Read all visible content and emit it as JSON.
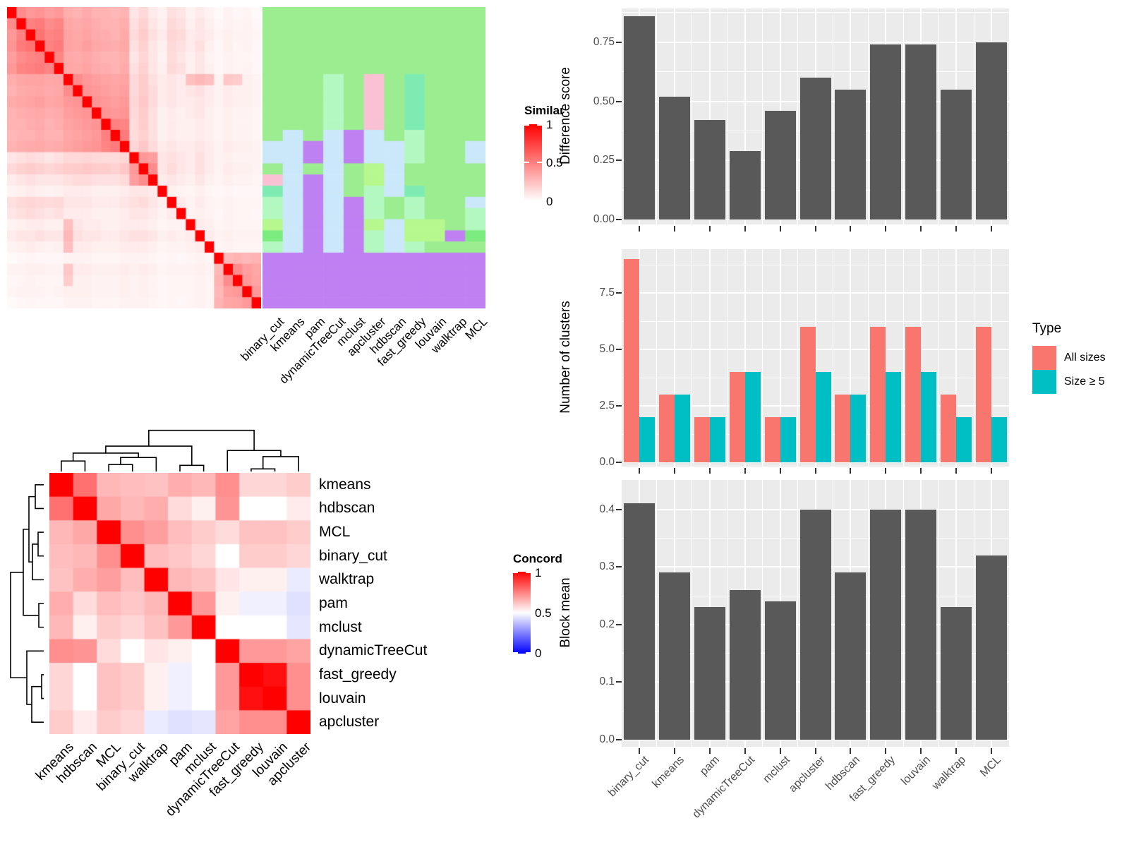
{
  "methods": [
    "binary_cut",
    "kmeans",
    "pam",
    "dynamicTreeCut",
    "mclust",
    "apcluster",
    "hdbscan",
    "fast_greedy",
    "louvain",
    "walktrap",
    "MCL"
  ],
  "legends": {
    "similarity": {
      "title": "Similarity",
      "ticks": [
        "1",
        "0.5",
        "0"
      ],
      "low_color": "#FFFFFF",
      "high_color": "#FF0000"
    },
    "concordance": {
      "title": "Concordance",
      "ticks": [
        "1",
        "0.5",
        "0"
      ],
      "low_color": "#0000FF",
      "mid_color": "#FFFFFF",
      "high_color": "#FF0000"
    },
    "type": {
      "title": "Type",
      "items": [
        {
          "label": "All sizes",
          "color": "#F8766D"
        },
        {
          "label": "Size ≥ 5",
          "color": "#00BFC4"
        }
      ]
    }
  },
  "colors": {
    "bar_grey": "#595959",
    "panel_bg": "#EBEBEB",
    "grid": "#FFFFFF",
    "axis_text": "#4D4D4D",
    "heat_high": "#FF0000"
  },
  "chart_data": [
    {
      "id": "similarity_matrix",
      "type": "heatmap",
      "n": 27,
      "colorscale": {
        "low": "#FFFFFF",
        "high": "#FF0000",
        "domain": [
          0,
          1
        ]
      },
      "values_upper_triangle": [
        [
          1,
          0.45,
          0.4,
          0.42,
          0.38,
          0.4,
          0.32,
          0.3,
          0.33,
          0.3,
          0.3,
          0.28,
          0.3,
          0.1,
          0.15,
          0.08,
          0.05,
          0.12,
          0.1,
          0.05,
          0.08,
          0.05,
          0.02,
          0.05,
          0.03,
          0.04,
          0.02
        ],
        [
          1,
          0.5,
          0.52,
          0.45,
          0.48,
          0.35,
          0.33,
          0.35,
          0.32,
          0.3,
          0.3,
          0.32,
          0.12,
          0.18,
          0.1,
          0.06,
          0.15,
          0.12,
          0.06,
          0.1,
          0.06,
          0.03,
          0.05,
          0.04,
          0.05,
          0.03
        ],
        [
          1,
          0.55,
          0.48,
          0.5,
          0.36,
          0.34,
          0.36,
          0.33,
          0.32,
          0.3,
          0.33,
          0.14,
          0.2,
          0.12,
          0.08,
          0.16,
          0.14,
          0.08,
          0.1,
          0.08,
          0.04,
          0.06,
          0.05,
          0.05,
          0.04
        ],
        [
          1,
          0.5,
          0.52,
          0.36,
          0.35,
          0.38,
          0.34,
          0.33,
          0.32,
          0.34,
          0.12,
          0.18,
          0.1,
          0.06,
          0.15,
          0.12,
          0.08,
          0.12,
          0.06,
          0.03,
          0.06,
          0.04,
          0.05,
          0.03
        ],
        [
          1,
          0.48,
          0.34,
          0.33,
          0.35,
          0.32,
          0.3,
          0.3,
          0.32,
          0.1,
          0.16,
          0.1,
          0.05,
          0.14,
          0.1,
          0.06,
          0.1,
          0.05,
          0.03,
          0.05,
          0.04,
          0.04,
          0.03
        ],
        [
          1,
          0.35,
          0.34,
          0.36,
          0.33,
          0.32,
          0.3,
          0.33,
          0.12,
          0.18,
          0.1,
          0.06,
          0.15,
          0.12,
          0.06,
          0.1,
          0.06,
          0.03,
          0.05,
          0.04,
          0.05,
          0.03
        ],
        [
          1,
          0.45,
          0.4,
          0.38,
          0.36,
          0.35,
          0.36,
          0.15,
          0.2,
          0.12,
          0.08,
          0.1,
          0.08,
          0.25,
          0.28,
          0.25,
          0.05,
          0.22,
          0.2,
          0.06,
          0.05
        ],
        [
          1,
          0.42,
          0.4,
          0.38,
          0.36,
          0.38,
          0.15,
          0.2,
          0.14,
          0.08,
          0.1,
          0.08,
          0.1,
          0.12,
          0.08,
          0.05,
          0.08,
          0.06,
          0.06,
          0.05
        ],
        [
          1,
          0.42,
          0.4,
          0.38,
          0.4,
          0.16,
          0.22,
          0.14,
          0.08,
          0.1,
          0.08,
          0.08,
          0.1,
          0.08,
          0.05,
          0.08,
          0.06,
          0.06,
          0.05
        ],
        [
          1,
          0.42,
          0.4,
          0.42,
          0.15,
          0.2,
          0.12,
          0.06,
          0.08,
          0.06,
          0.08,
          0.1,
          0.06,
          0.04,
          0.06,
          0.05,
          0.05,
          0.04
        ],
        [
          1,
          0.5,
          0.48,
          0.14,
          0.2,
          0.12,
          0.06,
          0.08,
          0.06,
          0.06,
          0.08,
          0.06,
          0.04,
          0.06,
          0.05,
          0.05,
          0.04
        ],
        [
          1,
          0.52,
          0.14,
          0.18,
          0.12,
          0.06,
          0.08,
          0.06,
          0.06,
          0.08,
          0.06,
          0.04,
          0.06,
          0.05,
          0.05,
          0.04
        ],
        [
          1,
          0.16,
          0.22,
          0.14,
          0.08,
          0.1,
          0.08,
          0.08,
          0.1,
          0.08,
          0.05,
          0.08,
          0.06,
          0.06,
          0.05
        ],
        [
          1,
          0.4,
          0.38,
          0.1,
          0.12,
          0.1,
          0.08,
          0.12,
          0.08,
          0.05,
          0.06,
          0.05,
          0.05,
          0.05
        ],
        [
          1,
          0.45,
          0.1,
          0.14,
          0.1,
          0.08,
          0.12,
          0.08,
          0.05,
          0.08,
          0.06,
          0.06,
          0.05
        ],
        [
          1,
          0.08,
          0.1,
          0.08,
          0.06,
          0.1,
          0.06,
          0.04,
          0.06,
          0.05,
          0.05,
          0.04
        ],
        [
          1,
          0.06,
          0.05,
          0.04,
          0.06,
          0.04,
          0.03,
          0.04,
          0.03,
          0.03,
          0.03
        ],
        [
          1,
          0.08,
          0.05,
          0.08,
          0.05,
          0.04,
          0.05,
          0.04,
          0.04,
          0.04
        ],
        [
          1,
          0.05,
          0.06,
          0.05,
          0.03,
          0.05,
          0.04,
          0.04,
          0.03
        ],
        [
          1,
          0.08,
          0.06,
          0.04,
          0.05,
          0.04,
          0.04,
          0.04
        ],
        [
          1,
          0.08,
          0.05,
          0.06,
          0.05,
          0.05,
          0.05
        ],
        [
          1,
          0.04,
          0.05,
          0.04,
          0.04,
          0.04
        ],
        [
          1,
          0.28,
          0.3,
          0.28,
          0.3
        ],
        [
          1,
          0.45,
          0.38,
          0.35
        ],
        [
          1,
          0.4,
          0.36
        ],
        [
          1,
          0.4
        ],
        [
          1
        ]
      ]
    },
    {
      "id": "method_partitions",
      "type": "heatmap",
      "columns": [
        "binary_cut",
        "kmeans",
        "pam",
        "dynamicTreeCut",
        "mclust",
        "apcluster",
        "hdbscan",
        "fast_greedy",
        "louvain",
        "walktrap",
        "MCL"
      ],
      "palette": {
        "G": "#9CEC90",
        "M": "#B4F8C1",
        "T": "#7EECB2",
        "P": "#F9C1D3",
        "B": "#CBE8FB",
        "U": "#BF80F2",
        "Y": "#B6F88D",
        "D": "#7DEC80"
      },
      "rows": [
        "GGGGGGGGGGG",
        "GGGGGGGGGGG",
        "GGGGGGGGGGG",
        "GGGGGGGGGGG",
        "GGGGGGGGGGG",
        "GGGGGGGGGGG",
        "GGGMGPGTGGG",
        "GGGMGPGTGGG",
        "GGGMGPGTGGG",
        "GGGMGPGTGGG",
        "GGGMGPGTGGG",
        "GBGBUBGMGGG",
        "BBUBUBBMGGB",
        "BBUBUBBMGGB",
        "GBGBGYBGGGG",
        "PBUBGYBGGGG",
        "TBUBGMBTGGG",
        "MBUBUMGMGGB",
        "MBUBUMGMGGM",
        "YBUBUYBYYGM",
        "DBUBUMBYYUD",
        "MBUBUMBMGGG",
        "UUUUUUUUUUU",
        "UUUUUUUUUUU",
        "UUUUUUUUUUU",
        "UUUUUUUUUUU",
        "UUUUUUUUUUU"
      ]
    },
    {
      "id": "concordance_matrix",
      "type": "heatmap",
      "labels": [
        "kmeans",
        "hdbscan",
        "MCL",
        "binary_cut",
        "walktrap",
        "pam",
        "mclust",
        "dynamicTreeCut",
        "fast_greedy",
        "louvain",
        "apcluster"
      ],
      "colorscale": {
        "low": "#0000FF",
        "mid": "#FFFFFF",
        "high": "#FF0000",
        "domain": [
          0,
          0.5,
          1
        ]
      },
      "matrix": [
        [
          1.0,
          0.78,
          0.64,
          0.63,
          0.62,
          0.66,
          0.64,
          0.72,
          0.58,
          0.58,
          0.6
        ],
        [
          0.78,
          1.0,
          0.67,
          0.64,
          0.66,
          0.57,
          0.53,
          0.71,
          0.5,
          0.5,
          0.54
        ],
        [
          0.64,
          0.67,
          1.0,
          0.72,
          0.69,
          0.63,
          0.6,
          0.57,
          0.62,
          0.62,
          0.6
        ],
        [
          0.63,
          0.64,
          0.72,
          1.0,
          0.63,
          0.61,
          0.58,
          0.5,
          0.6,
          0.6,
          0.58
        ],
        [
          0.62,
          0.66,
          0.69,
          0.63,
          1.0,
          0.64,
          0.62,
          0.55,
          0.53,
          0.53,
          0.46
        ],
        [
          0.66,
          0.57,
          0.63,
          0.61,
          0.64,
          1.0,
          0.7,
          0.53,
          0.47,
          0.47,
          0.44
        ],
        [
          0.64,
          0.53,
          0.6,
          0.58,
          0.62,
          0.7,
          1.0,
          0.5,
          0.5,
          0.5,
          0.45
        ],
        [
          0.72,
          0.71,
          0.57,
          0.5,
          0.55,
          0.53,
          0.5,
          1.0,
          0.7,
          0.7,
          0.68
        ],
        [
          0.58,
          0.5,
          0.62,
          0.6,
          0.53,
          0.47,
          0.5,
          0.7,
          1.0,
          0.97,
          0.72
        ],
        [
          0.58,
          0.5,
          0.62,
          0.6,
          0.53,
          0.47,
          0.5,
          0.7,
          0.97,
          1.0,
          0.72
        ],
        [
          0.6,
          0.54,
          0.6,
          0.58,
          0.46,
          0.44,
          0.45,
          0.68,
          0.72,
          0.72,
          1.0
        ]
      ],
      "dendrogram_merges": [
        [
          "L8",
          "L9",
          0.06
        ],
        [
          "M0",
          "L10",
          0.34
        ],
        [
          "L7",
          "M1",
          0.48
        ],
        [
          "L2",
          "L3",
          0.16
        ],
        [
          "M3",
          "L4",
          0.32
        ],
        [
          "L0",
          "L1",
          0.24
        ],
        [
          "M5",
          "M4",
          0.42
        ],
        [
          "L5",
          "L6",
          0.14
        ],
        [
          "M6",
          "M7",
          0.58
        ],
        [
          "M8",
          "M2",
          0.94
        ]
      ]
    },
    {
      "id": "difference_score",
      "type": "bar",
      "categories": [
        "binary_cut",
        "kmeans",
        "pam",
        "dynamicTreeCut",
        "mclust",
        "apcluster",
        "hdbscan",
        "fast_greedy",
        "louvain",
        "walktrap",
        "MCL"
      ],
      "values": [
        0.86,
        0.52,
        0.42,
        0.29,
        0.46,
        0.6,
        0.55,
        0.74,
        0.74,
        0.55,
        0.75
      ],
      "ylabel": "Difference score",
      "yticks": {
        "values": [
          0,
          0.25,
          0.5,
          0.75
        ],
        "labels": [
          "0.00",
          "0.25",
          "0.50",
          "0.75"
        ],
        "minor": [
          0.125,
          0.375,
          0.625,
          0.875
        ]
      },
      "ylim": [
        0,
        0.89
      ],
      "bar_color": "#595959"
    },
    {
      "id": "n_clusters",
      "type": "grouped-bar",
      "categories": [
        "binary_cut",
        "kmeans",
        "pam",
        "dynamicTreeCut",
        "mclust",
        "apcluster",
        "hdbscan",
        "fast_greedy",
        "louvain",
        "walktrap",
        "MCL"
      ],
      "series": [
        {
          "name": "All sizes",
          "color": "#F8766D",
          "values": [
            9,
            3,
            2,
            4,
            2,
            6,
            3,
            6,
            6,
            3,
            6
          ]
        },
        {
          "name": "Size ≥ 5",
          "color": "#00BFC4",
          "values": [
            2,
            3,
            2,
            4,
            2,
            4,
            3,
            4,
            4,
            2,
            2
          ]
        }
      ],
      "ylabel": "Number of clusters",
      "yticks": {
        "values": [
          0,
          2.5,
          5,
          7.5
        ],
        "labels": [
          "0.0",
          "2.5",
          "5.0",
          "7.5"
        ],
        "minor": [
          1.25,
          3.75,
          6.25,
          8.75
        ]
      },
      "ylim": [
        0,
        9.45
      ],
      "legend_position": "right"
    },
    {
      "id": "block_mean",
      "type": "bar",
      "categories": [
        "binary_cut",
        "kmeans",
        "pam",
        "dynamicTreeCut",
        "mclust",
        "apcluster",
        "hdbscan",
        "fast_greedy",
        "louvain",
        "walktrap",
        "MCL"
      ],
      "values": [
        0.41,
        0.29,
        0.23,
        0.26,
        0.24,
        0.4,
        0.29,
        0.4,
        0.4,
        0.23,
        0.32
      ],
      "ylabel": "Block mean",
      "yticks": {
        "values": [
          0,
          0.1,
          0.2,
          0.3,
          0.4
        ],
        "labels": [
          "0.0",
          "0.1",
          "0.2",
          "0.3",
          "0.4"
        ],
        "minor": [
          0.05,
          0.15,
          0.25,
          0.35,
          0.45
        ]
      },
      "ylim": [
        0,
        0.45
      ],
      "bar_color": "#595959"
    }
  ]
}
